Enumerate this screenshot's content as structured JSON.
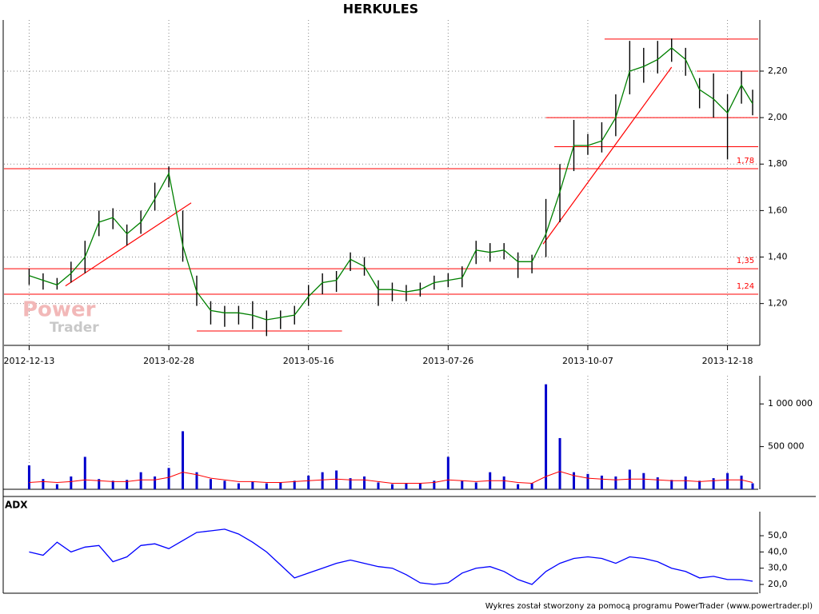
{
  "chart_data": [
    {
      "type": "ohlc",
      "title": "HERKULES",
      "x": [
        0,
        5,
        10,
        15,
        20,
        25,
        30,
        35,
        40,
        45,
        50,
        55,
        60,
        65,
        70,
        75,
        80,
        85,
        90,
        95,
        100,
        105,
        110,
        115,
        120,
        125,
        130,
        135,
        140,
        145,
        150,
        155,
        160,
        165,
        170,
        175,
        180,
        185,
        190,
        195,
        200,
        205,
        210,
        215,
        220,
        225,
        230,
        235,
        240,
        245,
        250,
        255,
        259
      ],
      "high": [
        1.35,
        1.33,
        1.31,
        1.38,
        1.47,
        1.6,
        1.61,
        1.54,
        1.6,
        1.72,
        1.79,
        1.6,
        1.32,
        1.21,
        1.19,
        1.19,
        1.21,
        1.17,
        1.17,
        1.19,
        1.28,
        1.33,
        1.34,
        1.42,
        1.4,
        1.3,
        1.29,
        1.28,
        1.29,
        1.32,
        1.33,
        1.36,
        1.47,
        1.46,
        1.46,
        1.42,
        1.41,
        1.65,
        1.8,
        1.99,
        1.93,
        1.98,
        2.1,
        2.33,
        2.3,
        2.33,
        2.34,
        2.3,
        2.17,
        2.19,
        2.1,
        2.2,
        2.12
      ],
      "low": [
        1.28,
        1.26,
        1.26,
        1.29,
        1.33,
        1.49,
        1.52,
        1.45,
        1.5,
        1.6,
        1.7,
        1.38,
        1.19,
        1.11,
        1.1,
        1.11,
        1.09,
        1.06,
        1.09,
        1.11,
        1.19,
        1.24,
        1.25,
        1.34,
        1.32,
        1.19,
        1.21,
        1.21,
        1.23,
        1.26,
        1.27,
        1.27,
        1.37,
        1.38,
        1.39,
        1.31,
        1.33,
        1.4,
        1.55,
        1.77,
        1.84,
        1.85,
        1.92,
        2.1,
        2.15,
        2.19,
        2.24,
        2.18,
        2.04,
        2.0,
        1.82,
        2.06,
        2.01
      ],
      "bar_color": "#000000",
      "moving_average": {
        "color": "#008000",
        "values": [
          1.32,
          1.3,
          1.28,
          1.33,
          1.4,
          1.55,
          1.57,
          1.5,
          1.55,
          1.65,
          1.76,
          1.45,
          1.25,
          1.17,
          1.16,
          1.16,
          1.15,
          1.13,
          1.14,
          1.15,
          1.23,
          1.29,
          1.3,
          1.39,
          1.36,
          1.26,
          1.26,
          1.25,
          1.26,
          1.29,
          1.3,
          1.31,
          1.43,
          1.42,
          1.43,
          1.38,
          1.38,
          1.5,
          1.68,
          1.88,
          1.88,
          1.9,
          2.0,
          2.2,
          2.22,
          2.25,
          2.3,
          2.25,
          2.12,
          2.08,
          2.02,
          2.14,
          2.06
        ]
      },
      "xlim": [
        -9,
        261
      ],
      "xticks": [
        {
          "value": 0,
          "label": "2012-12-13"
        },
        {
          "value": 50,
          "label": "2013-02-28"
        },
        {
          "value": 100,
          "label": "2013-05-16"
        },
        {
          "value": 150,
          "label": "2013-07-26"
        },
        {
          "value": 200,
          "label": "2013-10-07"
        },
        {
          "value": 250,
          "label": "2013-12-18"
        }
      ],
      "ylim": [
        1.02,
        2.42
      ],
      "yticks": [
        {
          "value": 1.2,
          "label": "1,20"
        },
        {
          "value": 1.4,
          "label": "1,40"
        },
        {
          "value": 1.6,
          "label": "1,60"
        },
        {
          "value": 1.8,
          "label": "1,80"
        },
        {
          "value": 2.0,
          "label": "2,00"
        },
        {
          "value": 2.2,
          "label": "2,20"
        }
      ],
      "grid": true,
      "line_color": "#ff0000",
      "levels": [
        {
          "value": 1.78,
          "label": "1,78",
          "from": -9,
          "to": 261
        },
        {
          "value": 1.35,
          "label": "1,35",
          "from": -9,
          "to": 261
        },
        {
          "value": 1.24,
          "label": "1,24",
          "from": -9,
          "to": 261
        },
        {
          "value": 2.0,
          "from": 185,
          "to": 261
        },
        {
          "value": 1.875,
          "from": 188,
          "to": 261
        },
        {
          "value": 2.2,
          "from": 239,
          "to": 261
        },
        {
          "value": 2.338,
          "from": 206,
          "to": 261
        },
        {
          "value": 1.082,
          "from": 60,
          "to": 112
        }
      ],
      "trendlines": [
        {
          "x": [
            13,
            58
          ],
          "y": [
            1.276,
            1.633
          ]
        },
        {
          "x": [
            184,
            230
          ],
          "y": [
            1.456,
            2.217
          ]
        }
      ],
      "watermark": {
        "line1": "Power",
        "line2": "Trader"
      }
    },
    {
      "type": "bar",
      "x": [
        0,
        5,
        10,
        15,
        20,
        25,
        30,
        35,
        40,
        45,
        50,
        55,
        60,
        65,
        70,
        75,
        80,
        85,
        90,
        95,
        100,
        105,
        110,
        115,
        120,
        125,
        130,
        135,
        140,
        145,
        150,
        155,
        160,
        165,
        170,
        175,
        180,
        185,
        190,
        195,
        200,
        205,
        210,
        215,
        220,
        225,
        230,
        235,
        240,
        245,
        250,
        255,
        259
      ],
      "values": [
        280000,
        120000,
        60000,
        150000,
        380000,
        120000,
        100000,
        110000,
        200000,
        150000,
        250000,
        680000,
        200000,
        120000,
        100000,
        70000,
        90000,
        70000,
        80000,
        100000,
        160000,
        200000,
        220000,
        130000,
        150000,
        80000,
        60000,
        70000,
        70000,
        100000,
        380000,
        100000,
        80000,
        200000,
        150000,
        60000,
        70000,
        1230000,
        600000,
        200000,
        180000,
        160000,
        150000,
        230000,
        190000,
        140000,
        110000,
        150000,
        100000,
        130000,
        190000,
        160000,
        70000
      ],
      "color": "#0000cc",
      "moving_average": {
        "color": "#ff0000",
        "values": [
          80000,
          90000,
          80000,
          90000,
          110000,
          100000,
          90000,
          90000,
          110000,
          110000,
          140000,
          200000,
          170000,
          130000,
          110000,
          90000,
          90000,
          80000,
          80000,
          90000,
          100000,
          110000,
          120000,
          110000,
          110000,
          90000,
          70000,
          70000,
          70000,
          80000,
          110000,
          100000,
          90000,
          100000,
          100000,
          80000,
          70000,
          150000,
          210000,
          160000,
          130000,
          120000,
          110000,
          120000,
          120000,
          110000,
          100000,
          100000,
          90000,
          100000,
          110000,
          110000,
          80000
        ]
      },
      "xlim": [
        -9,
        261
      ],
      "ylim": [
        0,
        1330000
      ],
      "yticks": [
        {
          "value": 500000,
          "label": "500 000"
        },
        {
          "value": 1000000,
          "label": "1 000 000"
        }
      ],
      "grid": true
    },
    {
      "type": "line",
      "title": "ADX",
      "x": [
        0,
        5,
        10,
        15,
        20,
        25,
        30,
        35,
        40,
        45,
        50,
        55,
        60,
        65,
        70,
        75,
        80,
        85,
        90,
        95,
        100,
        105,
        110,
        115,
        120,
        125,
        130,
        135,
        140,
        145,
        150,
        155,
        160,
        165,
        170,
        175,
        180,
        185,
        190,
        195,
        200,
        205,
        210,
        215,
        220,
        225,
        230,
        235,
        240,
        245,
        250,
        255,
        259
      ],
      "values": [
        40,
        38,
        46,
        40,
        43,
        44,
        34,
        37,
        44,
        45,
        42,
        47,
        52,
        53,
        54,
        51,
        46,
        40,
        32,
        24,
        27,
        30,
        33,
        35,
        33,
        31,
        30,
        26,
        21,
        20,
        21,
        27,
        30,
        31,
        28,
        23,
        20,
        28,
        33,
        36,
        37,
        36,
        33,
        37,
        36,
        34,
        30,
        28,
        24,
        25,
        23,
        23,
        22
      ],
      "color": "#0000ff",
      "xlim": [
        -9,
        261
      ],
      "ylim": [
        14.6,
        64.8
      ],
      "yticks": [
        {
          "value": 20,
          "label": "20,0"
        },
        {
          "value": 30,
          "label": "30,0"
        },
        {
          "value": 40,
          "label": "40,0"
        },
        {
          "value": 50,
          "label": "50,0"
        }
      ],
      "grid": false
    }
  ],
  "footer": "Wykres został stworzony za pomocą programu PowerTrader (www.powertrader.pl)"
}
